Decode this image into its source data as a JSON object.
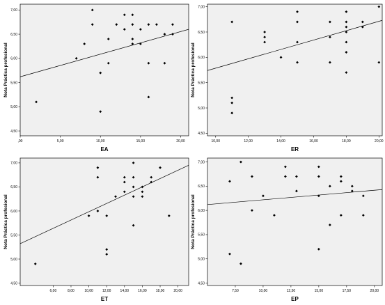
{
  "chart_data": [
    {
      "type": "scatter",
      "xlabel": "EA",
      "ylabel": "Nota Práctica profesional",
      "xlim": [
        0,
        21
      ],
      "ylim": [
        4.4,
        7.12
      ],
      "xticks": [
        0,
        5,
        10,
        15,
        20
      ],
      "xtick_labels": [
        ",00",
        "5,00",
        "10,00",
        "15,00",
        "20,00"
      ],
      "yticks": [
        4.5,
        5.0,
        5.5,
        6.0,
        6.5,
        7.0
      ],
      "ytick_labels": [
        "4,50",
        "5,00",
        "5,50",
        "6,00",
        "6,50",
        "7,00"
      ],
      "grid": false,
      "points": [
        {
          "x": 2.0,
          "y": 5.1
        },
        {
          "x": 7.0,
          "y": 6.0
        },
        {
          "x": 8.0,
          "y": 6.3
        },
        {
          "x": 9.0,
          "y": 7.0
        },
        {
          "x": 9.0,
          "y": 6.7
        },
        {
          "x": 10.0,
          "y": 5.7
        },
        {
          "x": 10.0,
          "y": 4.9
        },
        {
          "x": 11.0,
          "y": 5.9
        },
        {
          "x": 11.0,
          "y": 6.4
        },
        {
          "x": 12.0,
          "y": 6.7
        },
        {
          "x": 13.0,
          "y": 6.9
        },
        {
          "x": 13.0,
          "y": 6.6
        },
        {
          "x": 14.0,
          "y": 6.9
        },
        {
          "x": 14.0,
          "y": 6.4
        },
        {
          "x": 14.0,
          "y": 6.3
        },
        {
          "x": 14.0,
          "y": 6.7
        },
        {
          "x": 15.0,
          "y": 6.6
        },
        {
          "x": 15.0,
          "y": 6.3
        },
        {
          "x": 16.0,
          "y": 6.7
        },
        {
          "x": 16.0,
          "y": 5.9
        },
        {
          "x": 16.0,
          "y": 5.2
        },
        {
          "x": 17.0,
          "y": 6.7
        },
        {
          "x": 18.0,
          "y": 6.5
        },
        {
          "x": 18.0,
          "y": 5.9
        },
        {
          "x": 19.0,
          "y": 6.7
        },
        {
          "x": 19.0,
          "y": 6.5
        }
      ],
      "fit_line": {
        "x": [
          0,
          21
        ],
        "y": [
          5.62,
          6.6
        ]
      }
    },
    {
      "type": "scatter",
      "xlabel": "ER",
      "ylabel": "Nota Práctica profesional",
      "xlim": [
        9.5,
        20.2
      ],
      "ylim": [
        4.45,
        7.05
      ],
      "xticks": [
        10,
        12,
        14,
        16,
        18,
        20
      ],
      "xtick_labels": [
        "10,00",
        "12,00",
        "14,00",
        "16,00",
        "18,00",
        "20,00"
      ],
      "yticks": [
        4.5,
        5.0,
        5.5,
        6.0,
        6.5,
        7.0
      ],
      "ytick_labels": [
        "4,50",
        "5,00",
        "5,50",
        "6,00",
        "6,50",
        "7,00"
      ],
      "grid": false,
      "points": [
        {
          "x": 11.0,
          "y": 6.7
        },
        {
          "x": 11.0,
          "y": 5.2
        },
        {
          "x": 11.0,
          "y": 5.1
        },
        {
          "x": 11.0,
          "y": 4.9
        },
        {
          "x": 13.0,
          "y": 6.5
        },
        {
          "x": 13.0,
          "y": 6.4
        },
        {
          "x": 13.0,
          "y": 6.3
        },
        {
          "x": 14.0,
          "y": 6.0
        },
        {
          "x": 15.0,
          "y": 6.9
        },
        {
          "x": 15.0,
          "y": 6.7
        },
        {
          "x": 15.0,
          "y": 6.3
        },
        {
          "x": 15.0,
          "y": 5.9
        },
        {
          "x": 17.0,
          "y": 6.7
        },
        {
          "x": 17.0,
          "y": 6.4
        },
        {
          "x": 17.0,
          "y": 5.9
        },
        {
          "x": 18.0,
          "y": 6.9
        },
        {
          "x": 18.0,
          "y": 6.7
        },
        {
          "x": 18.0,
          "y": 6.6
        },
        {
          "x": 18.0,
          "y": 6.5
        },
        {
          "x": 18.0,
          "y": 6.3
        },
        {
          "x": 18.0,
          "y": 6.1
        },
        {
          "x": 18.0,
          "y": 5.7
        },
        {
          "x": 19.0,
          "y": 6.7
        },
        {
          "x": 19.0,
          "y": 6.6
        },
        {
          "x": 20.0,
          "y": 7.0
        },
        {
          "x": 20.0,
          "y": 5.9
        }
      ],
      "fit_line": {
        "x": [
          9.5,
          20.2
        ],
        "y": [
          5.74,
          6.73
        ]
      }
    },
    {
      "type": "scatter",
      "xlabel": "ET",
      "ylabel": "Nota Práctica profesional",
      "xlim": [
        2.3,
        21.2
      ],
      "ylim": [
        4.45,
        7.1
      ],
      "xticks": [
        6,
        8,
        10,
        12,
        14,
        16,
        18,
        20
      ],
      "xtick_labels": [
        "6,00",
        "8,00",
        "10,00",
        "12,00",
        "14,00",
        "16,00",
        "18,00",
        "20,00"
      ],
      "yticks": [
        4.5,
        5.0,
        5.5,
        6.0,
        6.5,
        7.0
      ],
      "ytick_labels": [
        "4,50",
        "5,00",
        "5,50",
        "6,00",
        "6,50",
        "7,00"
      ],
      "grid": false,
      "points": [
        {
          "x": 4.0,
          "y": 4.9
        },
        {
          "x": 10.0,
          "y": 5.9
        },
        {
          "x": 11.0,
          "y": 6.9
        },
        {
          "x": 11.0,
          "y": 6.7
        },
        {
          "x": 11.0,
          "y": 6.0
        },
        {
          "x": 12.0,
          "y": 5.9
        },
        {
          "x": 12.0,
          "y": 5.2
        },
        {
          "x": 12.0,
          "y": 5.1
        },
        {
          "x": 13.0,
          "y": 6.3
        },
        {
          "x": 14.0,
          "y": 6.7
        },
        {
          "x": 14.0,
          "y": 6.6
        },
        {
          "x": 14.0,
          "y": 6.4
        },
        {
          "x": 15.0,
          "y": 7.0
        },
        {
          "x": 15.0,
          "y": 6.7
        },
        {
          "x": 15.0,
          "y": 6.5
        },
        {
          "x": 15.0,
          "y": 6.3
        },
        {
          "x": 15.0,
          "y": 5.7
        },
        {
          "x": 16.0,
          "y": 6.5
        },
        {
          "x": 16.0,
          "y": 6.4
        },
        {
          "x": 16.0,
          "y": 6.3
        },
        {
          "x": 17.0,
          "y": 6.7
        },
        {
          "x": 17.0,
          "y": 6.6
        },
        {
          "x": 18.0,
          "y": 6.9
        },
        {
          "x": 19.0,
          "y": 5.9
        }
      ],
      "fit_line": {
        "x": [
          2.3,
          21.2
        ],
        "y": [
          5.32,
          6.95
        ]
      }
    },
    {
      "type": "scatter",
      "xlabel": "EP",
      "ylabel": "Nota Práctica profesional",
      "xlim": [
        5.0,
        20.7
      ],
      "ylim": [
        4.45,
        7.08
      ],
      "xticks": [
        7.5,
        10,
        12.5,
        15,
        17.5,
        20
      ],
      "xtick_labels": [
        "7,50",
        "10,00",
        "12,50",
        "15,00",
        "17,50",
        "20,00"
      ],
      "yticks": [
        4.5,
        5.0,
        5.5,
        6.0,
        6.5,
        7.0
      ],
      "ytick_labels": [
        "4,50",
        "5,00",
        "5,50",
        "6,00",
        "6,50",
        "7,00"
      ],
      "grid": false,
      "points": [
        {
          "x": 7.0,
          "y": 6.6
        },
        {
          "x": 7.0,
          "y": 5.1
        },
        {
          "x": 8.0,
          "y": 7.0
        },
        {
          "x": 8.0,
          "y": 4.9
        },
        {
          "x": 9.0,
          "y": 6.7
        },
        {
          "x": 9.0,
          "y": 6.0
        },
        {
          "x": 10.0,
          "y": 6.3
        },
        {
          "x": 11.0,
          "y": 5.9
        },
        {
          "x": 12.0,
          "y": 6.9
        },
        {
          "x": 12.0,
          "y": 6.7
        },
        {
          "x": 13.0,
          "y": 6.7
        },
        {
          "x": 13.0,
          "y": 6.4
        },
        {
          "x": 15.0,
          "y": 6.9
        },
        {
          "x": 15.0,
          "y": 6.7
        },
        {
          "x": 15.0,
          "y": 6.3
        },
        {
          "x": 15.0,
          "y": 5.2
        },
        {
          "x": 16.0,
          "y": 6.5
        },
        {
          "x": 16.0,
          "y": 5.7
        },
        {
          "x": 17.0,
          "y": 6.7
        },
        {
          "x": 17.0,
          "y": 6.6
        },
        {
          "x": 17.0,
          "y": 5.9
        },
        {
          "x": 18.0,
          "y": 6.5
        },
        {
          "x": 18.0,
          "y": 6.4
        },
        {
          "x": 19.0,
          "y": 6.3
        },
        {
          "x": 19.0,
          "y": 5.9
        }
      ],
      "fit_line": {
        "x": [
          5.0,
          20.7
        ],
        "y": [
          6.12,
          6.43
        ]
      }
    }
  ]
}
